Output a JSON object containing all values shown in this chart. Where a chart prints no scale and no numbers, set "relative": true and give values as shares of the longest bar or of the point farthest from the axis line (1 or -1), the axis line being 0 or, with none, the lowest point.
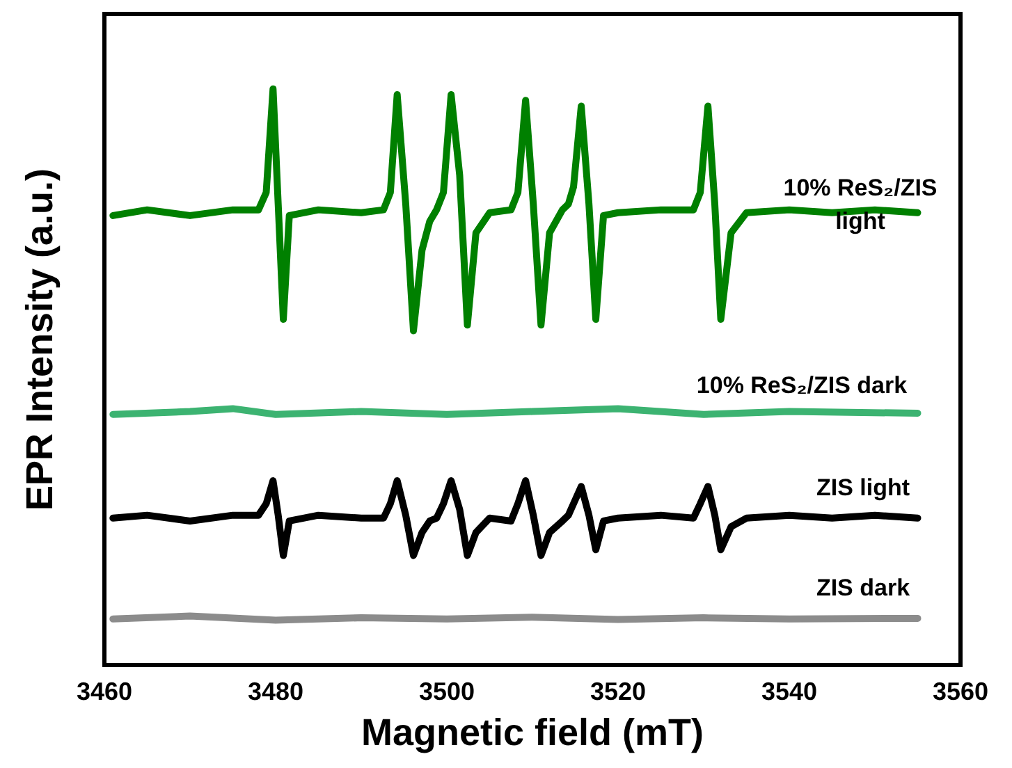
{
  "chart_data": {
    "type": "line",
    "xlabel": "Magnetic field (mT)",
    "ylabel": "EPR Intensity (a.u.)",
    "relative": true,
    "tick_labels": "x",
    "xlim": [
      3460,
      3560
    ],
    "xticks": [
      3460,
      3480,
      3500,
      3520,
      3540,
      3560
    ],
    "series": [
      {
        "name": "10% ReS₂/ZIS light",
        "color": "#008000",
        "x": [
          3461,
          3465,
          3470,
          3475,
          3478,
          3478.9,
          3479.7,
          3480.3,
          3480.9,
          3481.6,
          3485,
          3490,
          3492.6,
          3493.4,
          3494.2,
          3495.2,
          3496.1,
          3497.1,
          3498,
          3498.8,
          3499.6,
          3500.5,
          3501.5,
          3502.4,
          3503.4,
          3505,
          3507.5,
          3508.3,
          3509.2,
          3510.1,
          3511,
          3512,
          3513.5,
          3514.2,
          3514.8,
          3515.7,
          3516.6,
          3517.4,
          3518.3,
          3520,
          3525,
          3528.8,
          3529.6,
          3530.5,
          3531.3,
          3532,
          3533.2,
          3535,
          3540,
          3545,
          3550,
          3555
        ],
        "values": [
          0.78,
          0.79,
          0.78,
          0.79,
          0.79,
          0.82,
          1.0,
          0.8,
          0.6,
          0.78,
          0.79,
          0.785,
          0.79,
          0.82,
          0.99,
          0.8,
          0.58,
          0.72,
          0.77,
          0.79,
          0.82,
          0.99,
          0.85,
          0.59,
          0.75,
          0.785,
          0.79,
          0.82,
          0.98,
          0.8,
          0.59,
          0.75,
          0.79,
          0.8,
          0.83,
          0.97,
          0.8,
          0.6,
          0.78,
          0.785,
          0.79,
          0.79,
          0.82,
          0.97,
          0.8,
          0.6,
          0.75,
          0.785,
          0.79,
          0.785,
          0.79,
          0.785
        ]
      },
      {
        "name": "10% ReS₂/ZIS dark",
        "color": "#3cb371",
        "x": [
          3461,
          3470,
          3475,
          3480,
          3490,
          3500,
          3510,
          3520,
          3530,
          3540,
          3555
        ],
        "values": [
          0.435,
          0.44,
          0.445,
          0.435,
          0.44,
          0.435,
          0.44,
          0.445,
          0.435,
          0.44,
          0.437
        ]
      },
      {
        "name": "ZIS light",
        "color": "#000000",
        "x": [
          3461,
          3465,
          3470,
          3475,
          3478,
          3478.9,
          3479.7,
          3480.3,
          3480.9,
          3481.6,
          3485,
          3490,
          3492.6,
          3493.4,
          3494.2,
          3495.2,
          3496.1,
          3497.1,
          3498,
          3498.8,
          3499.6,
          3500.5,
          3501.5,
          3502.4,
          3503.4,
          3505,
          3507.5,
          3508.3,
          3509.2,
          3510.1,
          3511,
          3512,
          3513.5,
          3514.2,
          3514.8,
          3515.7,
          3516.6,
          3517.4,
          3518.3,
          3520,
          3525,
          3528.8,
          3529.6,
          3530.5,
          3531.3,
          3532,
          3533.2,
          3535,
          3540,
          3545,
          3550,
          3555
        ],
        "values": [
          0.255,
          0.26,
          0.25,
          0.26,
          0.26,
          0.28,
          0.32,
          0.26,
          0.19,
          0.25,
          0.26,
          0.255,
          0.255,
          0.28,
          0.32,
          0.26,
          0.19,
          0.23,
          0.25,
          0.255,
          0.28,
          0.32,
          0.27,
          0.19,
          0.23,
          0.255,
          0.25,
          0.28,
          0.32,
          0.26,
          0.19,
          0.23,
          0.25,
          0.26,
          0.28,
          0.31,
          0.26,
          0.2,
          0.25,
          0.255,
          0.26,
          0.255,
          0.28,
          0.31,
          0.26,
          0.2,
          0.24,
          0.255,
          0.26,
          0.255,
          0.26,
          0.255
        ]
      },
      {
        "name": "ZIS dark",
        "color": "#8c8c8c",
        "x": [
          3461,
          3470,
          3480,
          3490,
          3500,
          3510,
          3520,
          3530,
          3540,
          3555
        ],
        "values": [
          0.08,
          0.085,
          0.078,
          0.082,
          0.08,
          0.083,
          0.079,
          0.082,
          0.08,
          0.081
        ]
      }
    ]
  }
}
